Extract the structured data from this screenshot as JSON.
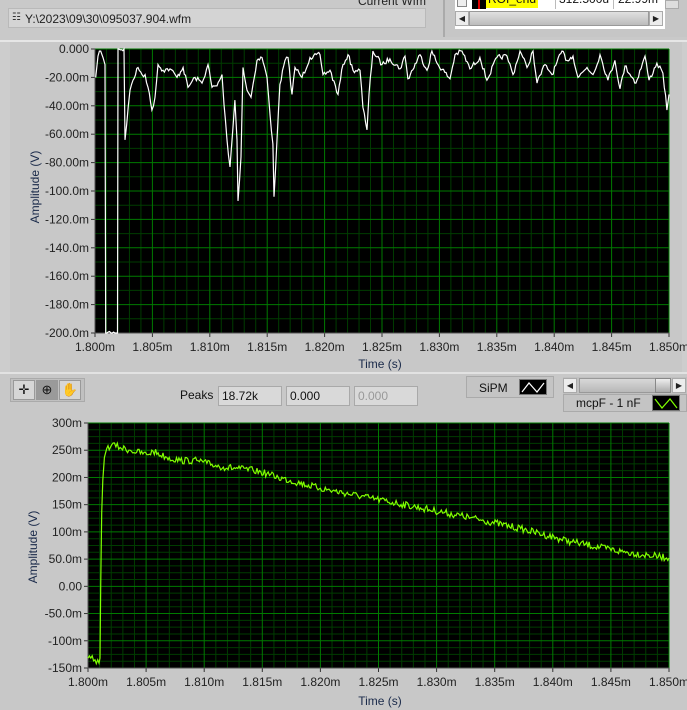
{
  "window": {
    "current_wfm_label": "Current Wfm",
    "file_path": "Y:\\2023\\09\\30\\095037.904.wfm",
    "file_icon": "file-path-icon"
  },
  "roi_table": {
    "row": {
      "name": "ROI_end",
      "value1": "312.500u",
      "value2": "22.99m"
    }
  },
  "toolbar": {
    "tools": [
      "cursor-crosshair-icon",
      "zoom-icon",
      "pan-hand-icon"
    ],
    "peaks_label": "Peaks",
    "peaks_values": [
      "18.72k",
      "0.000",
      "0.000"
    ]
  },
  "legend": {
    "plot1_name": "SiPM",
    "plot2_name": "mcpF - 1 nF"
  },
  "colors": {
    "plot_bg": "#000000",
    "grid_major": "#007a00",
    "grid_minor": "#003c00",
    "trace_sipm": "#ffffff",
    "trace_mcp": "#80ff00"
  },
  "chart_data": [
    {
      "type": "line",
      "xlabel": "Time (s)",
      "ylabel": "Amplitude (V)",
      "xlim": [
        1.8,
        1.85
      ],
      "ylim": [
        -200,
        0
      ],
      "x_ticks": [
        "1.800m",
        "1.805m",
        "1.810m",
        "1.815m",
        "1.820m",
        "1.825m",
        "1.830m",
        "1.835m",
        "1.840m",
        "1.845m",
        "1.850m"
      ],
      "y_ticks": [
        "0.000",
        "-20.00m",
        "-40.00m",
        "-60.00m",
        "-80.00m",
        "-100.0m",
        "-120.0m",
        "-140.0m",
        "-160.0m",
        "-180.0m",
        "-200.0m"
      ],
      "grid": true,
      "series": [
        {
          "name": "SiPM",
          "color": "#ffffff",
          "x": [
            1.80006,
            1.80026,
            1.8005,
            1.8007,
            1.80087,
            1.80093,
            1.80196,
            1.802,
            1.80253,
            1.80261,
            1.80276,
            1.80305,
            1.80331,
            1.80375,
            1.80409,
            1.80436,
            1.80462,
            1.80496,
            1.80523,
            1.80549,
            1.80592,
            1.80653,
            1.80714,
            1.80767,
            1.8081,
            1.80871,
            1.80932,
            1.80984,
            1.81019,
            1.81063,
            1.81106,
            1.81124,
            1.8115,
            1.81176,
            1.81202,
            1.81219,
            1.81237,
            1.81246,
            1.81272,
            1.81289,
            1.81324,
            1.81359,
            1.81376,
            1.81411,
            1.81455,
            1.81498,
            1.81524,
            1.8155,
            1.81559,
            1.81585,
            1.81611,
            1.81655,
            1.81681,
            1.81716,
            1.81742,
            1.81803,
            1.81873,
            1.8196,
            1.81986,
            1.82047,
            1.82117,
            1.8216,
            1.82204,
            1.82247,
            1.82308,
            1.82334,
            1.82369,
            1.82387,
            1.82421,
            1.825,
            1.82569,
            1.82657,
            1.827,
            1.82726,
            1.82831,
            1.82892,
            1.82935,
            1.82979,
            1.83092,
            1.83136,
            1.83197,
            1.83266,
            1.83353,
            1.83414,
            1.83501,
            1.83589,
            1.83641,
            1.83702,
            1.83763,
            1.83815,
            1.8385,
            1.8392,
            1.83981,
            1.84068,
            1.84111,
            1.84164,
            1.84207,
            1.84286,
            1.84338,
            1.84399,
            1.84468,
            1.84529,
            1.84573,
            1.84617,
            1.84712,
            1.84791,
            1.84826,
            1.84895,
            1.84947,
            1.84982,
            1.85
          ],
          "y": [
            -20,
            -5,
            -1.5,
            -6,
            -11,
            -200,
            -200,
            0,
            0,
            -64,
            -53,
            -29,
            -22,
            -13,
            -18,
            -18,
            -27,
            -43,
            -34,
            -11,
            -15,
            -14,
            -20,
            -13,
            -27,
            -20,
            -24,
            -11,
            -27,
            -26,
            -18,
            -39,
            -64,
            -83,
            -55,
            -36,
            -64,
            -107,
            -76,
            -13,
            -29,
            -34,
            -25,
            -8,
            -6,
            -20,
            -46,
            -67,
            -104,
            -64,
            -25,
            -8,
            -6,
            -32,
            -13,
            -20,
            -6,
            -4,
            -18,
            -15,
            -32,
            -11,
            -4,
            -15,
            -15,
            -41,
            -57,
            -32,
            -1.5,
            -11,
            -7,
            -14,
            -5,
            -21,
            -4,
            -15,
            -1.5,
            -10,
            -21,
            -4,
            -1.5,
            -14,
            -6,
            -22,
            -6,
            -5,
            -18,
            -1.5,
            -13,
            -1.5,
            -24,
            -11,
            -18,
            -1.5,
            -8,
            -5,
            -20,
            -13,
            -18,
            -4,
            -22,
            -8,
            -28,
            -12,
            -24,
            -5,
            -22,
            -10,
            -17,
            -43,
            -32
          ]
        }
      ]
    },
    {
      "type": "line",
      "xlabel": "Time (s)",
      "ylabel": "Amplitude (V)",
      "xlim": [
        1.8,
        1.85
      ],
      "ylim": [
        -150,
        300
      ],
      "x_ticks": [
        "1.800m",
        "1.805m",
        "1.810m",
        "1.815m",
        "1.820m",
        "1.825m",
        "1.830m",
        "1.835m",
        "1.840m",
        "1.845m",
        "1.850m"
      ],
      "y_ticks": [
        "300m",
        "250m",
        "200m",
        "150m",
        "100m",
        "50.0m",
        "0.00",
        "-50.0m",
        "-100m",
        "-150m"
      ],
      "grid": true,
      "series": [
        {
          "name": "mcpF - 1 nF",
          "color": "#80ff00",
          "x": [
            1.8,
            1.8006,
            1.80095,
            1.80103,
            1.80109,
            1.80118,
            1.80127,
            1.80141,
            1.80161,
            1.80204,
            1.80276,
            1.80362,
            1.80506,
            1.8056,
            1.80678,
            1.80793,
            1.80937,
            1.81023,
            1.81164,
            1.8131,
            1.81422,
            1.8154,
            1.81638,
            1.82,
            1.82431,
            1.82862,
            1.83293,
            1.83724,
            1.84155,
            1.84586,
            1.85
          ],
          "y": [
            -132,
            -135,
            -141,
            -132,
            0,
            135,
            195,
            237,
            253,
            260,
            255,
            250,
            242,
            248,
            237,
            231,
            231,
            226,
            219,
            216,
            213,
            207,
            200,
            180,
            162,
            144,
            126,
            106,
            82,
            64,
            52
          ]
        }
      ]
    }
  ]
}
